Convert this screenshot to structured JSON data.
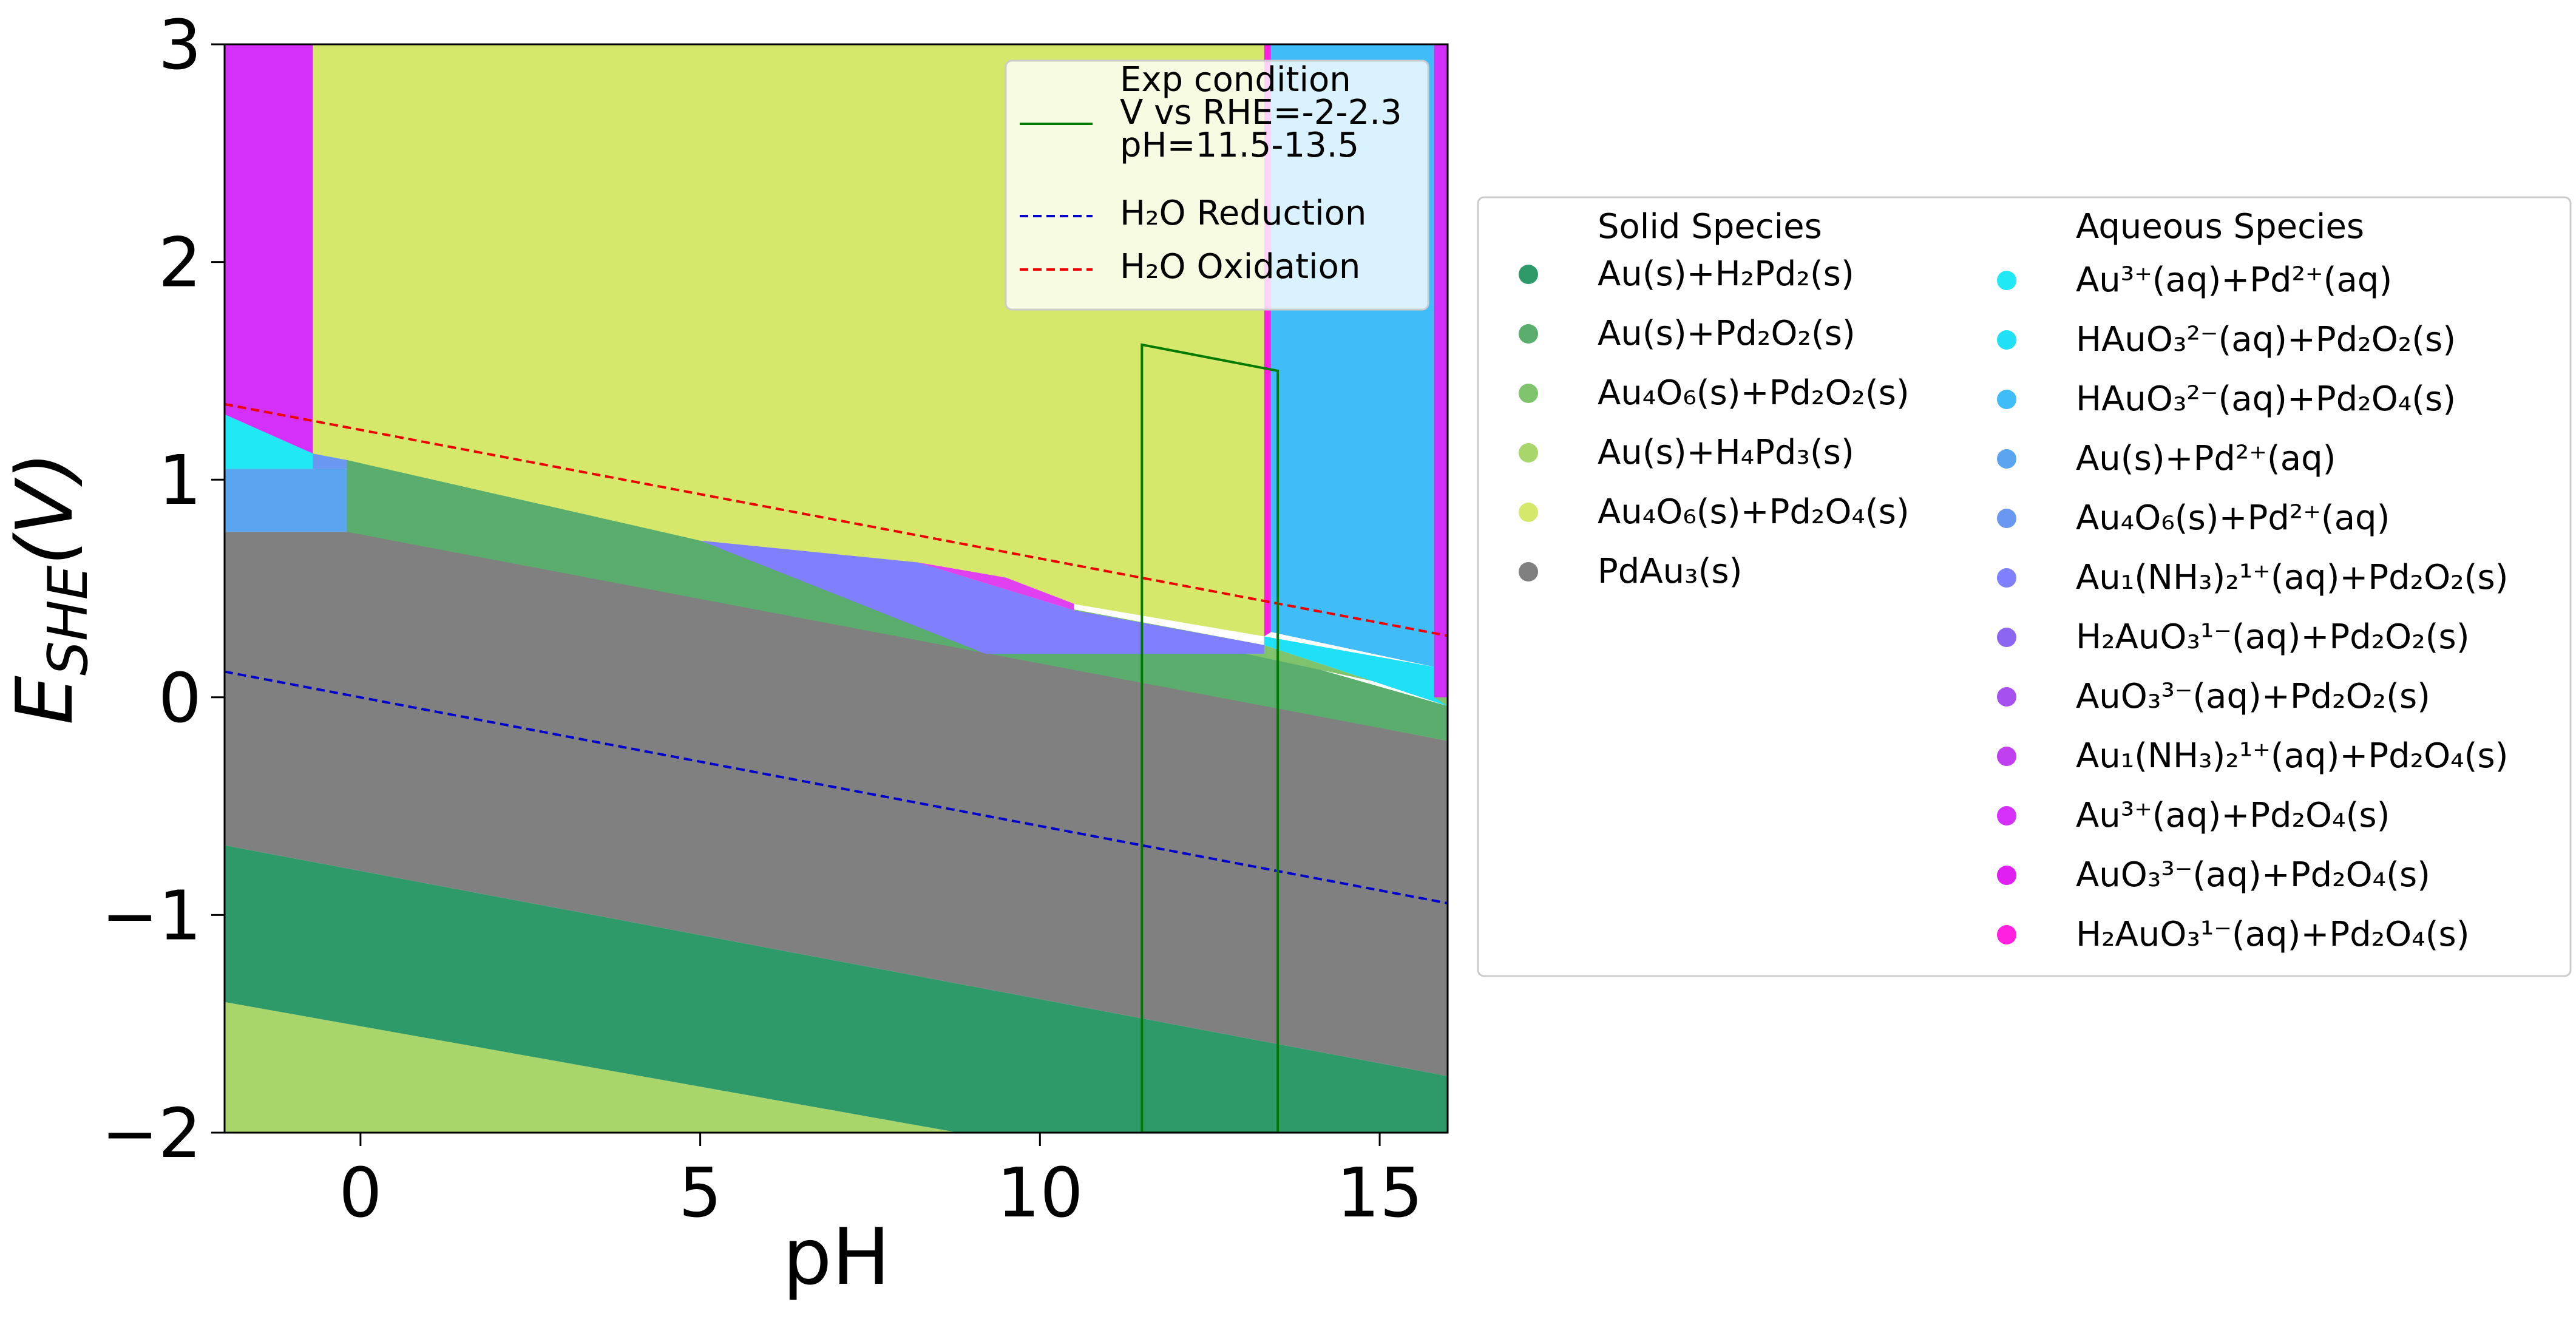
{
  "chart_data": {
    "type": "area",
    "title": "",
    "xlabel": "pH",
    "ylabel_main": "E",
    "ylabel_sub": "SHE",
    "ylabel_tail": "(V)",
    "xlim": [
      -2,
      16
    ],
    "ylim": [
      -2,
      3
    ],
    "xticks": [
      0,
      5,
      10,
      15
    ],
    "yticks": [
      -2,
      -1,
      0,
      1,
      2,
      3
    ],
    "xtick_labels": [
      "0",
      "5",
      "10",
      "15"
    ],
    "ytick_labels": [
      "−2",
      "−1",
      "0",
      "1",
      "2",
      "3"
    ],
    "grid": false,
    "regions": [
      {
        "species": "Au(s)+H4Pd3(s)",
        "color": "#a8d66a",
        "points": [
          [
            -2,
            -2
          ],
          [
            -2,
            -1.4
          ],
          [
            16,
            -2.4
          ],
          [
            16,
            -2
          ]
        ]
      },
      {
        "species": "Au(s)+H2Pd2(s)",
        "color": "#2e9a6a",
        "points": [
          [
            -2,
            -1.4
          ],
          [
            -2,
            -0.68
          ],
          [
            16,
            -1.74
          ],
          [
            16,
            -2.4
          ]
        ]
      },
      {
        "species": "PdAu3(s)",
        "color": "#808080",
        "points": [
          [
            -2,
            -0.68
          ],
          [
            -2,
            0.76
          ],
          [
            0,
            0.76
          ],
          [
            16,
            -0.2
          ],
          [
            16,
            -1.74
          ]
        ]
      },
      {
        "species": "Au(s)+Pd2O2(s)",
        "color": "#5aad6c",
        "points": [
          [
            -0.2,
            0.76
          ],
          [
            -0.2,
            1.1
          ],
          [
            5,
            0.72
          ],
          [
            9.2,
            0.22
          ],
          [
            13.3,
            0.2
          ],
          [
            16,
            -0.04
          ],
          [
            16,
            -0.2
          ]
        ]
      },
      {
        "species": "Au4O6(s)+Pd2O2(s)",
        "color": "#7fc46c",
        "points": [
          [
            -0.2,
            1.1
          ],
          [
            -0.2,
            1.09
          ],
          [
            16,
            0.0
          ],
          [
            16,
            -0.04
          ],
          [
            13.3,
            0.24
          ],
          [
            9.2,
            0.48
          ],
          [
            5,
            0.72
          ]
        ]
      },
      {
        "species": "Au4O6(s)+Pd2O4(s)",
        "color": "#d5e86c",
        "points": [
          [
            -0.7,
            3
          ],
          [
            13.3,
            3
          ],
          [
            13.3,
            0.28
          ],
          [
            5,
            0.72
          ],
          [
            -0.2,
            1.09
          ],
          [
            -0.7,
            1.05
          ]
        ]
      },
      {
        "species": "Au1(NH3)2 1+(aq)+Pd2O2(s)",
        "color": "#8080ff",
        "points": [
          [
            5,
            0.72
          ],
          [
            8.2,
            0.62
          ],
          [
            10.5,
            0.4
          ],
          [
            13.3,
            0.24
          ],
          [
            13.3,
            0.2
          ],
          [
            9.2,
            0.2
          ]
        ]
      },
      {
        "species": "AuO3 3-(aq)+Pd2O4(s)",
        "color": "#e040f0",
        "points": [
          [
            8.2,
            0.62
          ],
          [
            9.5,
            0.55
          ],
          [
            10.5,
            0.43
          ],
          [
            10.5,
            0.4
          ]
        ]
      },
      {
        "species": "Au(s)+Pd2+(aq)",
        "color": "#5aa4f0",
        "points": [
          [
            -2,
            0.76
          ],
          [
            -2,
            1.05
          ],
          [
            -0.2,
            1.05
          ],
          [
            -0.2,
            0.76
          ]
        ]
      },
      {
        "species": "Au3+(aq)+Pd2+(aq)",
        "color": "#20e8f4",
        "points": [
          [
            -2,
            1.05
          ],
          [
            -2,
            1.3
          ],
          [
            -0.7,
            1.12
          ],
          [
            -0.7,
            1.05
          ]
        ]
      },
      {
        "species": "Au4O6(s)+Pd2+(aq)",
        "color": "#6a98f0",
        "points": [
          [
            -0.7,
            1.12
          ],
          [
            -0.7,
            1.05
          ],
          [
            -0.2,
            1.05
          ],
          [
            -0.2,
            1.09
          ]
        ]
      },
      {
        "species": "Au3+(aq)+Pd2O4(s)",
        "color": "#d430f8",
        "points": [
          [
            -2,
            1.3
          ],
          [
            -2,
            3
          ],
          [
            -0.7,
            3
          ],
          [
            -0.7,
            1.12
          ]
        ]
      },
      {
        "species": "HAuO3 2-(aq)+Pd2O4(s)",
        "color": "#40bcf8",
        "points": [
          [
            13.4,
            3
          ],
          [
            15.8,
            3
          ],
          [
            15.8,
            0.14
          ],
          [
            13.4,
            0.3
          ]
        ]
      },
      {
        "species": "HAuO3 2-(aq)+Pd2O2(s)",
        "color": "#20e0f8",
        "points": [
          [
            13.3,
            0.28
          ],
          [
            15.8,
            0.14
          ],
          [
            15.8,
            0.0
          ],
          [
            16,
            -0.04
          ],
          [
            13.3,
            0.24
          ]
        ]
      },
      {
        "species": "H2AuO3 1-(aq)+Pd2O4(s)",
        "color": "#ff20e0",
        "points": [
          [
            13.3,
            3
          ],
          [
            13.4,
            3
          ],
          [
            13.4,
            0.3
          ],
          [
            13.3,
            0.28
          ]
        ]
      },
      {
        "species": "Au1(NH3)2 1+(aq)+Pd2O4(s)",
        "color": "#d030f8",
        "points": [
          [
            15.8,
            3
          ],
          [
            16,
            3
          ],
          [
            16,
            0.0
          ],
          [
            15.8,
            0.0
          ]
        ]
      }
    ],
    "lines": [
      {
        "name": "H2O Reduction",
        "color": "#0000cc",
        "dash": true,
        "x": [
          -2,
          16
        ],
        "y": [
          0.118,
          -0.946
        ]
      },
      {
        "name": "H2O Oxidation",
        "color": "#ee0000",
        "dash": true,
        "x": [
          -2,
          16
        ],
        "y": [
          1.347,
          0.283
        ]
      },
      {
        "name": "Exp condition",
        "color": "#007a00",
        "dash": false,
        "x": [
          11.5,
          11.5,
          13.5,
          13.5,
          11.5
        ],
        "y": [
          -2,
          1.62,
          1.5,
          -2,
          -2
        ]
      }
    ],
    "inset_legend": {
      "entries": [
        {
          "key": "exp",
          "lines": [
            "Exp condition",
            "V vs RHE=-2-2.3",
            "pH=11.5-13.5"
          ],
          "color": "#007a00",
          "dash": false
        },
        {
          "key": "red",
          "lines": [
            "H₂O Reduction"
          ],
          "color": "#0000cc",
          "dash": true
        },
        {
          "key": "ox",
          "lines": [
            "H₂O Oxidation"
          ],
          "color": "#ee0000",
          "dash": true
        }
      ]
    },
    "legend": {
      "solid_title": "Solid Species",
      "aqueous_title": "Aqueous Species",
      "solid": [
        {
          "label": "Au(s)+H₂Pd₂(s)",
          "color": "#2e9a6a"
        },
        {
          "label": "Au(s)+Pd₂O₂(s)",
          "color": "#5aad6c"
        },
        {
          "label": "Au₄O₆(s)+Pd₂O₂(s)",
          "color": "#7fc46c"
        },
        {
          "label": "Au(s)+H₄Pd₃(s)",
          "color": "#a8d66a"
        },
        {
          "label": "Au₄O₆(s)+Pd₂O₄(s)",
          "color": "#d5e86c"
        },
        {
          "label": "PdAu₃(s)",
          "color": "#808080"
        }
      ],
      "aqueous": [
        {
          "label": "Au³⁺(aq)+Pd²⁺(aq)",
          "color": "#20e8f4"
        },
        {
          "label": "HAuO₃²⁻(aq)+Pd₂O₂(s)",
          "color": "#20e0f8"
        },
        {
          "label": "HAuO₃²⁻(aq)+Pd₂O₄(s)",
          "color": "#40bcf8"
        },
        {
          "label": "Au(s)+Pd²⁺(aq)",
          "color": "#5aa4f0"
        },
        {
          "label": "Au₄O₆(s)+Pd²⁺(aq)",
          "color": "#6a98f0"
        },
        {
          "label": "Au₁(NH₃)₂¹⁺(aq)+Pd₂O₂(s)",
          "color": "#8080ff"
        },
        {
          "label": "H₂AuO₃¹⁻(aq)+Pd₂O₂(s)",
          "color": "#8c66f0"
        },
        {
          "label": "AuO₃³⁻(aq)+Pd₂O₂(s)",
          "color": "#a650f0"
        },
        {
          "label": "Au₁(NH₃)₂¹⁺(aq)+Pd₂O₄(s)",
          "color": "#c040f0"
        },
        {
          "label": "Au³⁺(aq)+Pd₂O₄(s)",
          "color": "#d430f8"
        },
        {
          "label": "AuO₃³⁻(aq)+Pd₂O₄(s)",
          "color": "#e020f0"
        },
        {
          "label": "H₂AuO₃¹⁻(aq)+Pd₂O₄(s)",
          "color": "#ff20e0"
        }
      ]
    }
  }
}
